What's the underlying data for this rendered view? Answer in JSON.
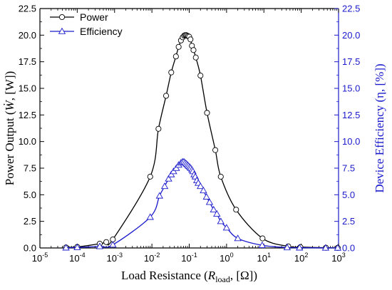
{
  "chart_data": {
    "type": "line",
    "x_scale": "log",
    "xlim": [
      1e-05,
      1000
    ],
    "ylim": [
      0,
      22.5
    ],
    "y2lim": [
      0,
      22.5
    ],
    "grid": false,
    "legend_position": "top-left",
    "xlabel": {
      "prefix": "Load Resistance (",
      "var": "R",
      "sub": "load",
      "suffix": ", [Ω])"
    },
    "ylabel": {
      "prefix": "Power Output (",
      "var": "Ẇ",
      "suffix": ", [W])"
    },
    "y2label": "Device Efficiency (η, [%])",
    "x_ticks": [
      {
        "base": "10",
        "exp": "-5"
      },
      {
        "base": "10",
        "exp": "-4"
      },
      {
        "base": "10",
        "exp": "-3"
      },
      {
        "base": "10",
        "exp": "-2"
      },
      {
        "base": "10",
        "exp": "-1"
      },
      {
        "base": "10",
        "exp": "0"
      },
      {
        "base": "10",
        "exp": "1"
      },
      {
        "base": "10",
        "exp": "2"
      },
      {
        "base": "10",
        "exp": "3"
      }
    ],
    "y_ticks": [
      "0.0",
      "2.5",
      "5.0",
      "7.5",
      "10.0",
      "12.5",
      "15.0",
      "17.5",
      "20.0",
      "22.5"
    ],
    "y2_ticks": [
      "0.0",
      "2.5",
      "5.0",
      "7.5",
      "10.0",
      "12.5",
      "15.0",
      "17.5",
      "20.0",
      "22.5"
    ],
    "colors": {
      "power": "#000000",
      "efficiency": "#1a1acc",
      "right_axis": "#1a1acc"
    },
    "series": [
      {
        "name": "Power",
        "axis": "left",
        "marker": "circle",
        "x": [
          5e-05,
          0.0001,
          0.0004,
          0.0006,
          0.0009,
          0.009,
          0.015,
          0.024,
          0.033,
          0.044,
          0.052,
          0.06,
          0.067,
          0.073,
          0.078,
          0.083,
          0.088,
          0.094,
          0.1,
          0.108,
          0.118,
          0.13,
          0.15,
          0.2,
          0.3,
          0.5,
          0.7,
          1.8,
          9.2,
          45,
          95,
          460,
          950
        ],
        "values": [
          0.05,
          0.1,
          0.4,
          0.55,
          0.8,
          6.7,
          11.2,
          14.3,
          16.5,
          18.0,
          18.9,
          19.5,
          19.8,
          19.95,
          20.0,
          20.0,
          19.95,
          19.9,
          19.85,
          19.6,
          19.0,
          18.6,
          17.9,
          16.2,
          12.7,
          9.2,
          6.7,
          3.6,
          0.9,
          0.15,
          0.08,
          0.02,
          0.01
        ]
      },
      {
        "name": "Efficiency",
        "axis": "right",
        "marker": "triangle",
        "x": [
          5e-05,
          0.0001,
          0.0004,
          0.0009,
          0.009,
          0.016,
          0.022,
          0.028,
          0.033,
          0.038,
          0.045,
          0.052,
          0.06,
          0.066,
          0.072,
          0.078,
          0.084,
          0.09,
          0.096,
          0.103,
          0.11,
          0.118,
          0.125,
          0.135,
          0.145,
          0.16,
          0.175,
          0.2,
          0.24,
          0.29,
          0.35,
          0.45,
          0.55,
          0.7,
          1.0,
          2.0,
          9.0,
          42,
          90,
          450,
          950
        ],
        "values": [
          0.02,
          0.05,
          0.15,
          0.3,
          2.9,
          4.9,
          5.8,
          6.5,
          6.9,
          7.2,
          7.5,
          7.8,
          8.0,
          8.1,
          8.1,
          8.0,
          7.9,
          7.8,
          7.7,
          7.6,
          7.5,
          7.35,
          7.2,
          6.9,
          6.7,
          6.35,
          6.1,
          5.8,
          5.4,
          4.8,
          4.3,
          3.6,
          3.2,
          2.5,
          1.9,
          0.9,
          0.25,
          0.04,
          0.02,
          0.005,
          0.003
        ]
      }
    ]
  }
}
